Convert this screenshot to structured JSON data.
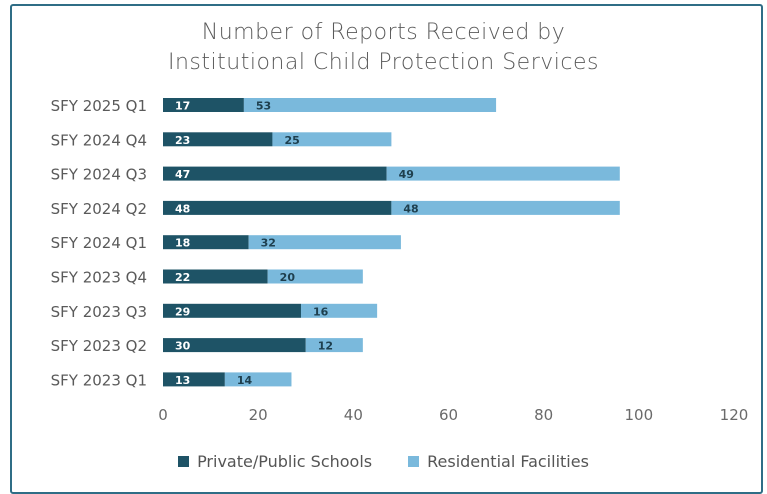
{
  "chart_data": {
    "type": "bar",
    "orientation": "horizontal",
    "stacked": true,
    "title_lines": [
      "Number of Reports Received by",
      "Institutional Child Protection Services"
    ],
    "categories": [
      "SFY 2025 Q1",
      "SFY 2024 Q4",
      "SFY 2024 Q3",
      "SFY 2024 Q2",
      "SFY 2024 Q1",
      "SFY 2023 Q4",
      "SFY 2023 Q3",
      "SFY 2023 Q2",
      "SFY 2023 Q1"
    ],
    "series": [
      {
        "name": "Private/Public Schools",
        "color": "#1e5366",
        "values": [
          17,
          23,
          47,
          48,
          18,
          22,
          29,
          30,
          13
        ]
      },
      {
        "name": "Residential Facilities",
        "color": "#7ab9dc",
        "values": [
          53,
          25,
          49,
          48,
          32,
          20,
          16,
          12,
          14
        ]
      }
    ],
    "xlim": [
      0,
      120
    ],
    "xticks": [
      "0",
      "20",
      "40",
      "60",
      "80",
      "100",
      "120"
    ],
    "grid": false,
    "legend_position": "bottom"
  }
}
